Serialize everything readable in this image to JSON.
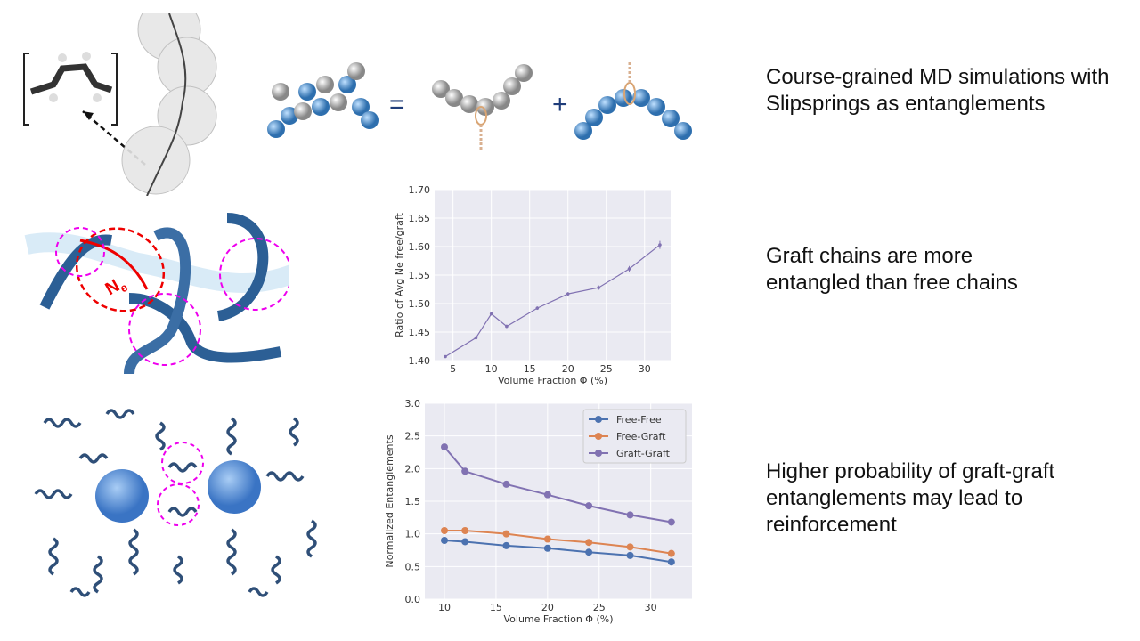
{
  "bullets": [
    "Course-grained MD simulations with Slipsprings as entanglements",
    "Graft chains are more entangled than free chains",
    "Higher probability of graft-graft entanglements may lead to reinforcement"
  ],
  "diagram_labels": {
    "equals": "=",
    "plus": "+",
    "ne": "N",
    "ne_sub": "e"
  },
  "colors": {
    "purple": "#8172b2",
    "blue": "#4c72b0",
    "orange": "#dd8452",
    "plot_bg": "#eaeaf2"
  },
  "chart_data": [
    {
      "type": "line",
      "title": "",
      "xlabel": "Volume Fraction Φ (%)",
      "ylabel": "Ratio of Avg Ne free/graft",
      "x": [
        4,
        8,
        10,
        12,
        16,
        20,
        24,
        28,
        32
      ],
      "series": [
        {
          "name": "ratio",
          "values": [
            1.407,
            1.44,
            1.482,
            1.46,
            1.492,
            1.517,
            1.528,
            1.561,
            1.603
          ],
          "error": [
            0.002,
            0.002,
            0.003,
            0.003,
            0.003,
            0.003,
            0.004,
            0.005,
            0.007
          ]
        }
      ],
      "xlim": [
        2.6,
        33.4
      ],
      "ylim": [
        1.4,
        1.7
      ],
      "xticks": [
        "5",
        "10",
        "15",
        "20",
        "25",
        "30"
      ],
      "yticks": [
        "1.40",
        "1.45",
        "1.50",
        "1.55",
        "1.60",
        "1.65",
        "1.70"
      ],
      "grid": true
    },
    {
      "type": "line",
      "title": "",
      "xlabel": "Volume Fraction Φ (%)",
      "ylabel": "Normalized Entanglements",
      "x": [
        10,
        12,
        16,
        20,
        24,
        28,
        32
      ],
      "series": [
        {
          "name": "Free-Free",
          "values": [
            0.9,
            0.88,
            0.82,
            0.78,
            0.72,
            0.67,
            0.57
          ]
        },
        {
          "name": "Free-Graft",
          "values": [
            1.05,
            1.05,
            1.0,
            0.92,
            0.87,
            0.8,
            0.7
          ]
        },
        {
          "name": "Graft-Graft",
          "values": [
            2.33,
            1.96,
            1.76,
            1.6,
            1.43,
            1.29,
            1.18
          ]
        }
      ],
      "xlim": [
        8.1,
        34.0
      ],
      "ylim": [
        0,
        3.0
      ],
      "xticks": [
        "10",
        "15",
        "20",
        "25",
        "30"
      ],
      "yticks": [
        "0.0",
        "0.5",
        "1.0",
        "1.5",
        "2.0",
        "2.5",
        "3.0"
      ],
      "legend": "top-right",
      "grid": true
    }
  ]
}
